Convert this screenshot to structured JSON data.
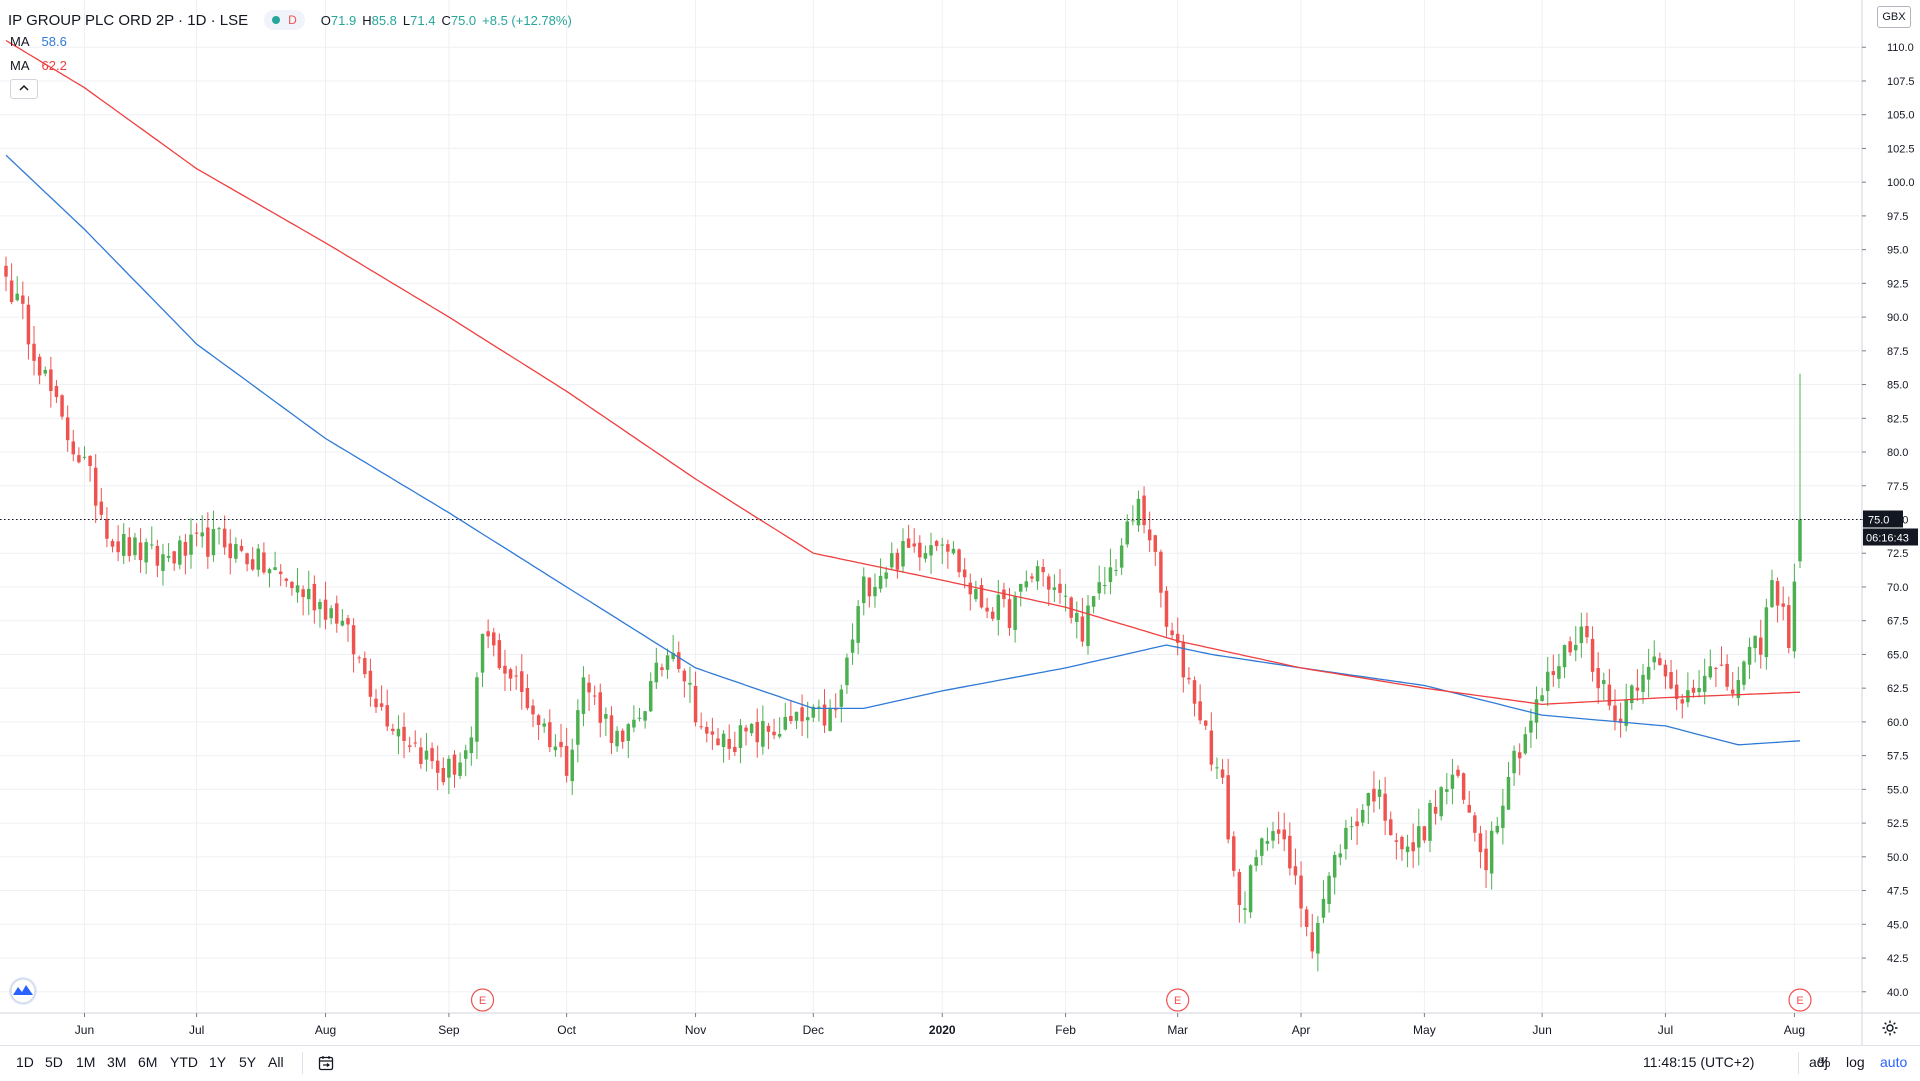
{
  "legend": {
    "symbol_title": "IP GROUP PLC ORD 2P · 1D · LSE",
    "interval_badge": "D",
    "ohlc": [
      {
        "key": "O",
        "value": "71.9"
      },
      {
        "key": "H",
        "value": "85.8"
      },
      {
        "key": "L",
        "value": "71.4"
      },
      {
        "key": "C",
        "value": "75.0"
      },
      {
        "key": "",
        "value": "+8.5 (+12.78%)"
      }
    ],
    "ma1": {
      "label": "MA",
      "value": "58.6"
    },
    "ma2": {
      "label": "MA",
      "value": "62.2"
    },
    "collapse_icon": "chevron-up-icon"
  },
  "currency_badge": "GBX",
  "price_labels": {
    "last": "75.0",
    "countdown": "06:16:43"
  },
  "earnings_markers": [
    {
      "label": "E",
      "date": "2019-09-10"
    },
    {
      "label": "E",
      "date": "2020-03-02"
    },
    {
      "label": "E",
      "date": "2020-08-04"
    }
  ],
  "colors": {
    "up": "#26a69a",
    "up_candle": "#4caf50",
    "down": "#ef5350",
    "ma1": "#2f7ad6",
    "ma2": "#ef3f3f",
    "grid": "#eef0f4",
    "accent": "#2962ff"
  },
  "toolbar": {
    "timeframes": [
      "1D",
      "5D",
      "1M",
      "3M",
      "6M",
      "YTD",
      "1Y",
      "5Y",
      "All"
    ],
    "calendar_icon": "calendar-range-icon",
    "clock": "11:48:15 (UTC+2)",
    "adj": "adj",
    "percent": "%",
    "log": "log",
    "auto": "auto",
    "settings_icon": "gear-icon"
  },
  "chart_data": {
    "type": "candlestick",
    "x_unit": "trading day",
    "ylim": [
      38.5,
      113.5
    ],
    "y_ticks": [
      40.0,
      42.5,
      45.0,
      47.5,
      50.0,
      52.5,
      55.0,
      57.5,
      60.0,
      62.5,
      65.0,
      67.5,
      70.0,
      72.5,
      75.0,
      77.5,
      80.0,
      82.5,
      85.0,
      87.5,
      90.0,
      92.5,
      95.0,
      97.5,
      100.0,
      102.5,
      105.0,
      107.5,
      110.0
    ],
    "y_tick_top_partial": "1",
    "x_ticks": [
      {
        "label": "Jun",
        "date": "2019-06-03"
      },
      {
        "label": "Jul",
        "date": "2019-07-01"
      },
      {
        "label": "Aug",
        "date": "2019-08-01"
      },
      {
        "label": "Sep",
        "date": "2019-09-02"
      },
      {
        "label": "Oct",
        "date": "2019-10-01"
      },
      {
        "label": "Nov",
        "date": "2019-11-01"
      },
      {
        "label": "Dec",
        "date": "2019-12-02"
      },
      {
        "label": "2020",
        "date": "2020-01-02"
      },
      {
        "label": "Feb",
        "date": "2020-02-03"
      },
      {
        "label": "Mar",
        "date": "2020-03-02"
      },
      {
        "label": "Apr",
        "date": "2020-04-01"
      },
      {
        "label": "May",
        "date": "2020-05-01"
      },
      {
        "label": "Jun",
        "date": "2020-06-01"
      },
      {
        "label": "Jul",
        "date": "2020-07-01"
      },
      {
        "label": "Aug",
        "date": "2020-08-03"
      }
    ],
    "x_range_dates": [
      "2019-05-14",
      "2020-08-04"
    ],
    "close_anchors": [
      {
        "date": "2019-05-14",
        "close": 93.0
      },
      {
        "date": "2019-05-20",
        "close": 89.0
      },
      {
        "date": "2019-05-28",
        "close": 82.0
      },
      {
        "date": "2019-06-03",
        "close": 79.0
      },
      {
        "date": "2019-06-10",
        "close": 73.5
      },
      {
        "date": "2019-06-20",
        "close": 72.0
      },
      {
        "date": "2019-07-05",
        "close": 73.5
      },
      {
        "date": "2019-07-20",
        "close": 71.0
      },
      {
        "date": "2019-08-05",
        "close": 68.0
      },
      {
        "date": "2019-08-15",
        "close": 61.0
      },
      {
        "date": "2019-08-30",
        "close": 56.0
      },
      {
        "date": "2019-09-06",
        "close": 58.0
      },
      {
        "date": "2019-09-10",
        "close": 66.5
      },
      {
        "date": "2019-09-20",
        "close": 61.5
      },
      {
        "date": "2019-10-01",
        "close": 57.0
      },
      {
        "date": "2019-10-04",
        "close": 63.0
      },
      {
        "date": "2019-10-15",
        "close": 58.0
      },
      {
        "date": "2019-10-28",
        "close": 66.0
      },
      {
        "date": "2019-11-05",
        "close": 58.5
      },
      {
        "date": "2019-11-15",
        "close": 59.0
      },
      {
        "date": "2019-11-28",
        "close": 60.0
      },
      {
        "date": "2019-12-06",
        "close": 60.5
      },
      {
        "date": "2019-12-13",
        "close": 70.0
      },
      {
        "date": "2019-12-20",
        "close": 72.0
      },
      {
        "date": "2020-01-02",
        "close": 74.0
      },
      {
        "date": "2020-01-10",
        "close": 69.0
      },
      {
        "date": "2020-01-20",
        "close": 68.0
      },
      {
        "date": "2020-01-27",
        "close": 71.5
      },
      {
        "date": "2020-02-06",
        "close": 67.0
      },
      {
        "date": "2020-02-14",
        "close": 72.0
      },
      {
        "date": "2020-02-20",
        "close": 76.0
      },
      {
        "date": "2020-02-24",
        "close": 74.0
      },
      {
        "date": "2020-02-27",
        "close": 67.0
      },
      {
        "date": "2020-03-05",
        "close": 62.0
      },
      {
        "date": "2020-03-12",
        "close": 55.0
      },
      {
        "date": "2020-03-17",
        "close": 46.0
      },
      {
        "date": "2020-03-25",
        "close": 53.0
      },
      {
        "date": "2020-04-03",
        "close": 44.0
      },
      {
        "date": "2020-04-10",
        "close": 51.0
      },
      {
        "date": "2020-04-20",
        "close": 55.0
      },
      {
        "date": "2020-04-28",
        "close": 50.0
      },
      {
        "date": "2020-05-08",
        "close": 56.0
      },
      {
        "date": "2020-05-18",
        "close": 50.0
      },
      {
        "date": "2020-05-22",
        "close": 56.5
      },
      {
        "date": "2020-06-02",
        "close": 63.0
      },
      {
        "date": "2020-06-10",
        "close": 67.0
      },
      {
        "date": "2020-06-18",
        "close": 60.0
      },
      {
        "date": "2020-06-26",
        "close": 65.0
      },
      {
        "date": "2020-07-03",
        "close": 61.5
      },
      {
        "date": "2020-07-10",
        "close": 64.0
      },
      {
        "date": "2020-07-17",
        "close": 62.5
      },
      {
        "date": "2020-07-24",
        "close": 66.0
      },
      {
        "date": "2020-07-28",
        "close": 70.0
      },
      {
        "date": "2020-07-31",
        "close": 66.5
      },
      {
        "date": "2020-08-04",
        "close": 75.0
      }
    ],
    "last_candle": {
      "date": "2020-08-04",
      "open": 71.9,
      "high": 85.8,
      "low": 71.4,
      "close": 75.0
    },
    "series": [
      {
        "name": "MA",
        "last_value": 58.6,
        "anchors": [
          {
            "date": "2019-05-14",
            "value": 102.0
          },
          {
            "date": "2019-06-03",
            "value": 96.5
          },
          {
            "date": "2019-07-01",
            "value": 88.0
          },
          {
            "date": "2019-08-01",
            "value": 81.0
          },
          {
            "date": "2019-09-02",
            "value": 75.5
          },
          {
            "date": "2019-10-01",
            "value": 70.0
          },
          {
            "date": "2019-11-01",
            "value": 64.0
          },
          {
            "date": "2019-12-02",
            "value": 61.0
          },
          {
            "date": "2019-12-13",
            "value": 61.0
          },
          {
            "date": "2020-01-02",
            "value": 62.3
          },
          {
            "date": "2020-02-03",
            "value": 64.0
          },
          {
            "date": "2020-02-27",
            "value": 65.7
          },
          {
            "date": "2020-03-10",
            "value": 65.0
          },
          {
            "date": "2020-04-01",
            "value": 64.0
          },
          {
            "date": "2020-05-01",
            "value": 62.7
          },
          {
            "date": "2020-06-01",
            "value": 60.5
          },
          {
            "date": "2020-07-01",
            "value": 59.7
          },
          {
            "date": "2020-07-20",
            "value": 58.3
          },
          {
            "date": "2020-08-04",
            "value": 58.6
          }
        ]
      },
      {
        "name": "MA",
        "last_value": 62.2,
        "anchors": [
          {
            "date": "2019-05-14",
            "value": 110.5
          },
          {
            "date": "2019-06-03",
            "value": 107.0
          },
          {
            "date": "2019-07-01",
            "value": 101.0
          },
          {
            "date": "2019-08-01",
            "value": 95.5
          },
          {
            "date": "2019-09-02",
            "value": 90.0
          },
          {
            "date": "2019-10-01",
            "value": 84.5
          },
          {
            "date": "2019-11-01",
            "value": 78.0
          },
          {
            "date": "2019-12-02",
            "value": 72.5
          },
          {
            "date": "2020-01-02",
            "value": 70.5
          },
          {
            "date": "2020-02-03",
            "value": 68.5
          },
          {
            "date": "2020-03-02",
            "value": 66.0
          },
          {
            "date": "2020-04-01",
            "value": 64.0
          },
          {
            "date": "2020-05-01",
            "value": 62.5
          },
          {
            "date": "2020-06-01",
            "value": 61.3
          },
          {
            "date": "2020-07-01",
            "value": 61.8
          },
          {
            "date": "2020-08-04",
            "value": 62.2
          }
        ]
      }
    ],
    "horizontal_line": {
      "value": 75.0,
      "style": "dotted"
    },
    "grid": true,
    "axis_position": "right",
    "legend_position": "top-left"
  }
}
